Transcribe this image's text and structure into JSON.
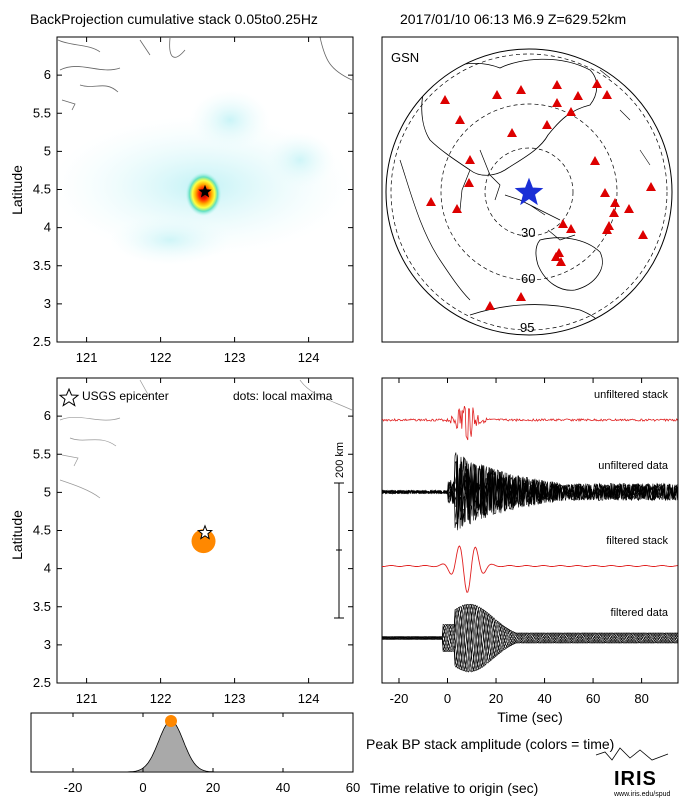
{
  "header": {
    "title": "BackProjection cumulative stack 0.05to0.25Hz",
    "event": "2017/01/10 06:13  M6.9  Z=629.52km"
  },
  "colors": {
    "frame": "#000000",
    "coast": "#555555",
    "peak": "#ff8800",
    "stack_red": "#e02020",
    "station": "#dd0000",
    "epicenter_map": "#1a2fd6",
    "envelope_fill": "#a9a9a9"
  },
  "cumulative_map": {
    "ylabel": "Latitude",
    "xticks": [
      121,
      122,
      123,
      124
    ],
    "yticks": [
      2.5,
      3,
      3.5,
      4,
      4.5,
      5,
      5.5,
      6
    ],
    "xlim": [
      120.6,
      124.6
    ],
    "ylim": [
      2.5,
      6.5
    ],
    "epicenter": {
      "lon": 122.6,
      "lat": 4.47,
      "icon": "star-icon"
    },
    "energy_peak": {
      "lon": 122.58,
      "lat": 4.44
    }
  },
  "gsn_map": {
    "label": "GSN",
    "distance_labels": [
      "30",
      "60",
      "95"
    ],
    "epicenter_icon": "star-icon",
    "station_icon": "triangle-icon"
  },
  "local_maxima_map": {
    "ylabel": "Latitude",
    "legend_epicenter": "USGS epicenter",
    "legend_dots": "dots: local maxima",
    "scale_label": "200 km",
    "xticks": [
      121,
      122,
      123,
      124
    ],
    "yticks": [
      2.5,
      3,
      3.5,
      4,
      4.5,
      5,
      5.5,
      6
    ],
    "xlim": [
      120.6,
      124.6
    ],
    "ylim": [
      2.5,
      6.5
    ],
    "epicenter": {
      "lon": 122.6,
      "lat": 4.47
    },
    "maximum": {
      "lon": 122.58,
      "lat": 4.36
    }
  },
  "traces": {
    "labels": {
      "unfiltered_stack": "unfiltered stack",
      "unfiltered_data": "unfiltered data",
      "filtered_stack": "filtered stack",
      "filtered_data": "filtered data"
    },
    "xlabel": "Time (sec)",
    "xticks": [
      -20,
      0,
      20,
      40,
      60,
      80
    ],
    "xlim": [
      -27,
      95
    ]
  },
  "peak_amplitude": {
    "title": "Peak BP stack amplitude (colors = time)",
    "xlabel": "Time relative to origin (sec)",
    "xticks": [
      -20,
      0,
      20,
      40,
      60
    ],
    "xlim": [
      -32,
      60
    ],
    "peak_time": 8
  },
  "footer": {
    "logo": "IRIS",
    "url": "www.iris.edu/spud"
  }
}
